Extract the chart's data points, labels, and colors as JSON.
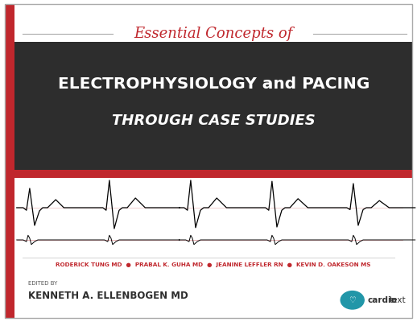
{
  "bg_color": "#ffffff",
  "border_color": "#cccccc",
  "red_color": "#c0272d",
  "dark_bg_color": "#2d2d2d",
  "top_text": "Essential Concepts of",
  "top_text_color": "#c0272d",
  "main_title_line1": "ELECTROPHYSIOLOGY and PACING",
  "main_title_line2": "THROUGH CASE STUDIES",
  "main_title_color": "#ffffff",
  "authors_line": "RODERICK TUNG MD  ●  PRABAL K. GUHA MD  ●  JEANINE LEFFLER RN  ●  KEVIN D. OAKESON MS",
  "authors_color": "#c0272d",
  "edited_by_label": "EDITED BY",
  "editor_name": "KENNETH A. ELLENBOGEN MD",
  "editor_color": "#2d2d2d",
  "cardiotext_color": "#2196a8"
}
